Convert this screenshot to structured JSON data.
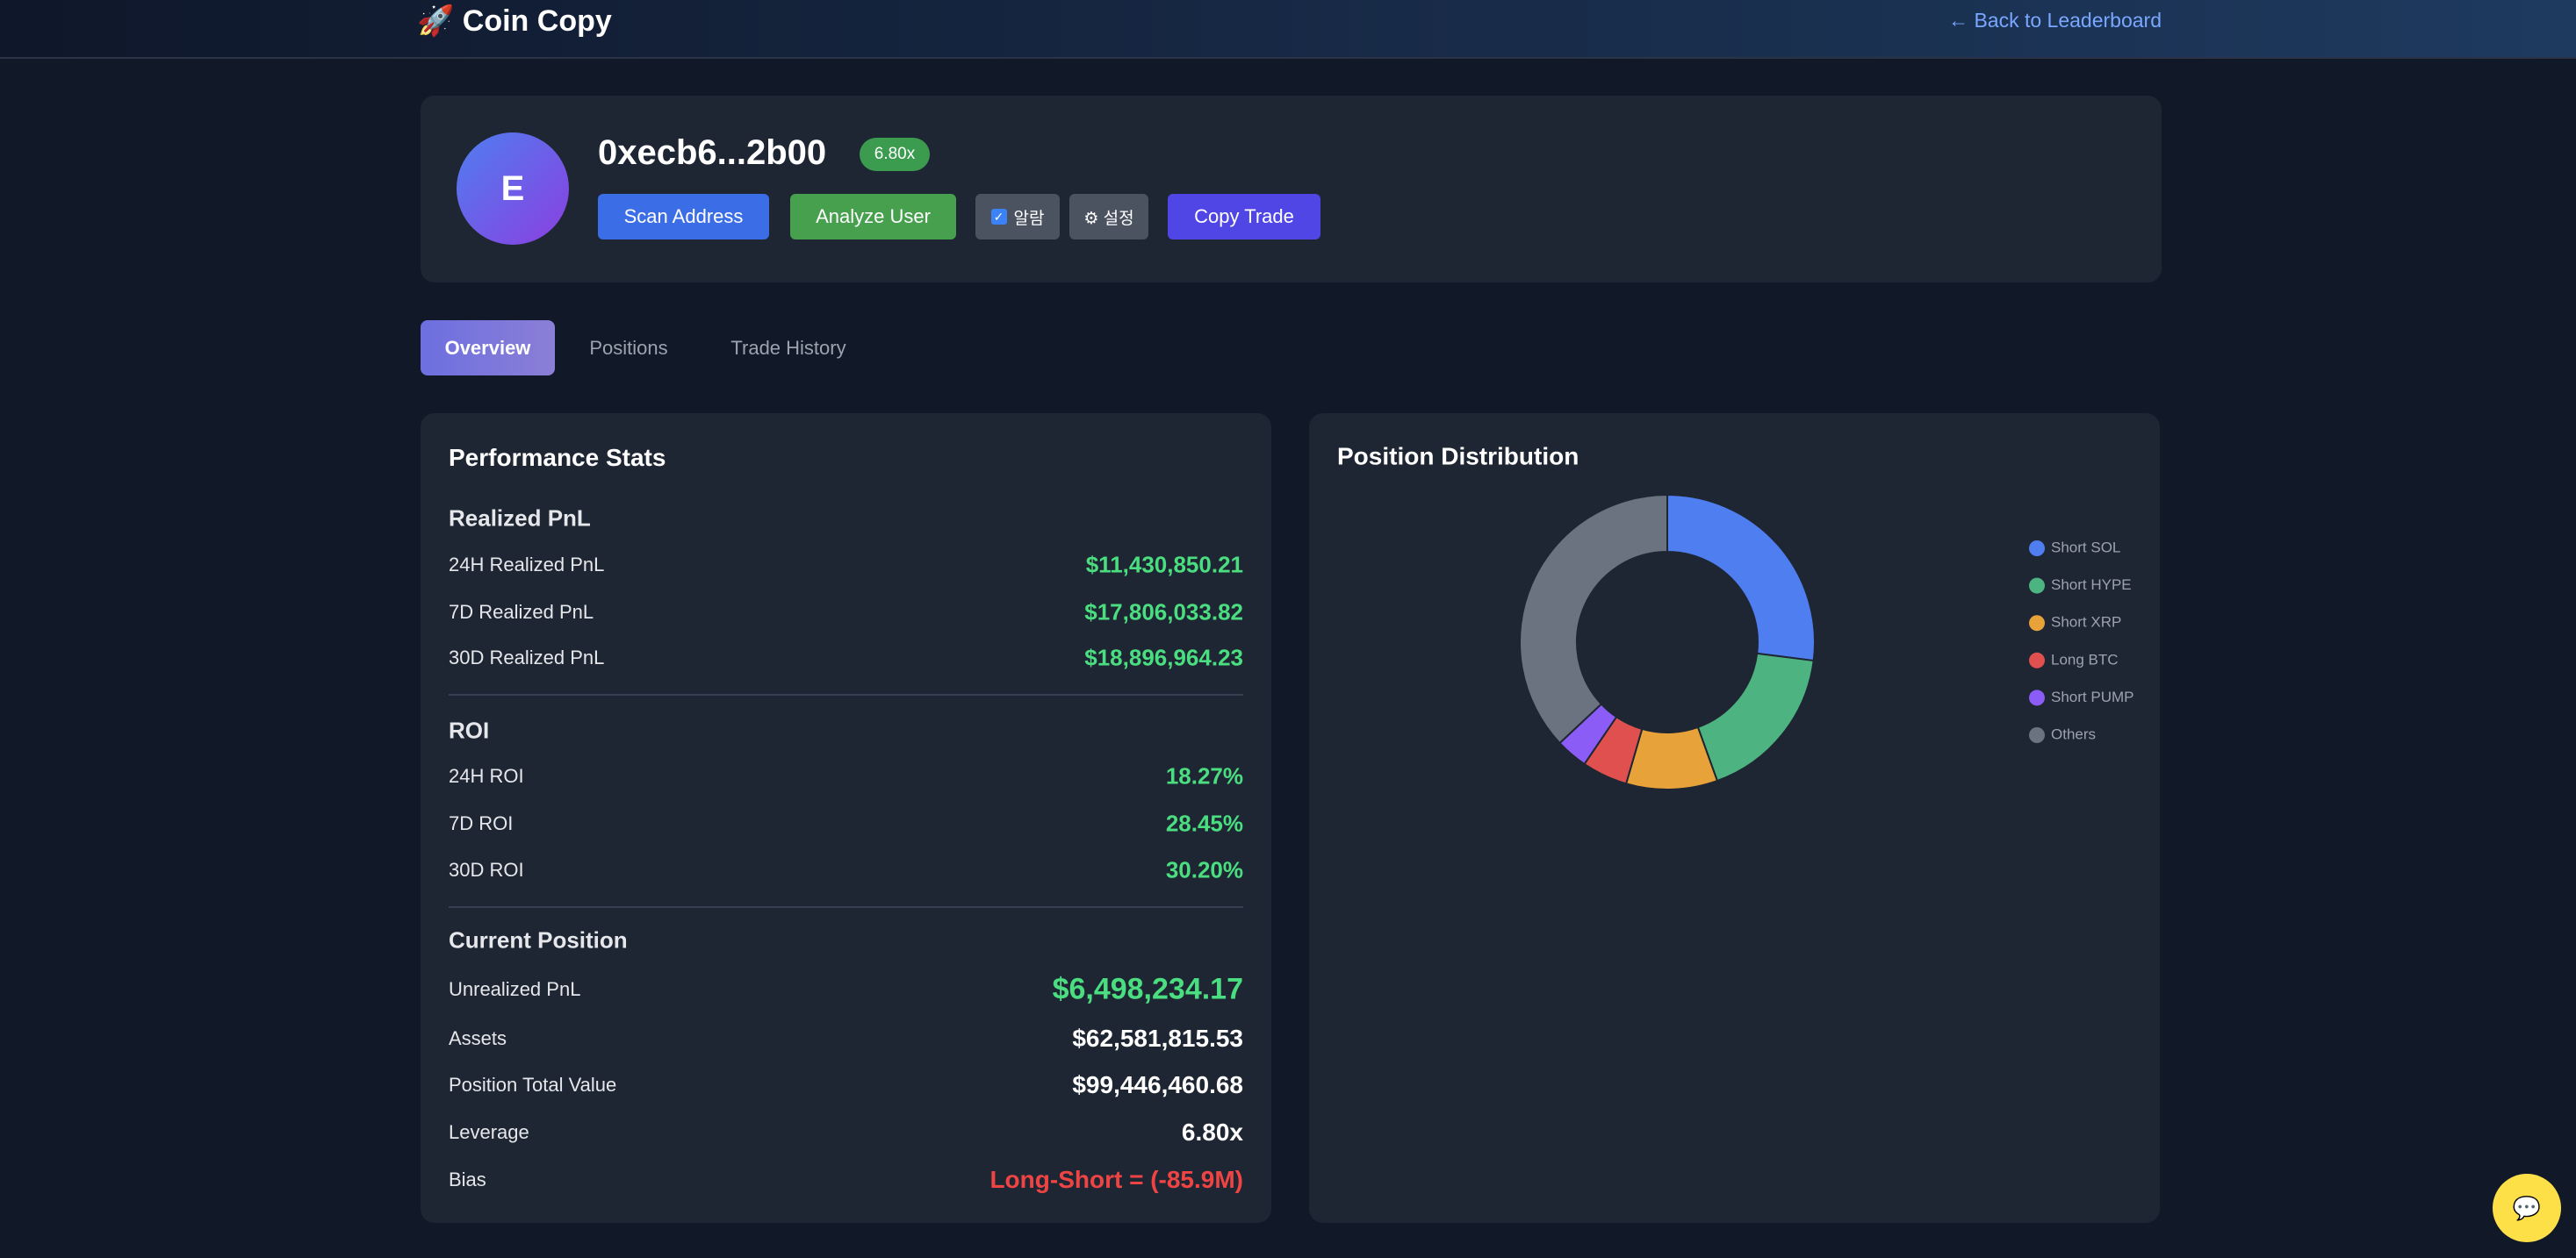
{
  "header": {
    "title": "🚀 Coin Copy",
    "back_link": "← Back to Leaderboard"
  },
  "profile": {
    "avatar": "E",
    "address": "0xecb6...2b00",
    "badge": "6.80x",
    "buttons": [
      "Scan Address",
      "Analyze User",
      "알람",
      "⚙ 설정",
      "Copy Trade"
    ]
  },
  "tabs": [
    "Overview",
    "Positions",
    "Trade History"
  ],
  "stats": {
    "title": "Performance Stats",
    "sections": [
      {
        "title": "Realized PnL",
        "rows": [
          [
            "24H Realized PnL",
            "$11,430,850.21"
          ],
          [
            "7D Realized PnL",
            "$17,806,033.82"
          ],
          [
            "30D Realized PnL",
            "$18,896,964.23"
          ]
        ]
      },
      {
        "title": "ROI",
        "rows": [
          [
            "24H ROI",
            "18.27%"
          ],
          [
            "7D ROI",
            "28.45%"
          ],
          [
            "30D ROI",
            "30.20%"
          ]
        ]
      },
      {
        "title": "Current Position",
        "rows": [
          [
            "Unrealized PnL",
            "$6,498,234.17"
          ],
          [
            "Assets",
            "$62,581,815.53"
          ],
          [
            "Position Total Value",
            "$99,446,460.68"
          ],
          [
            "Leverage",
            "6.80x"
          ],
          [
            "Bias",
            "Long-Short = (-85.9M)"
          ]
        ]
      }
    ]
  },
  "chart_data": {
    "type": "pie",
    "title": "Position Distribution",
    "categories": [
      "Short SOL",
      "Short HYPE",
      "Short XRP",
      "Long BTC",
      "Short PUMP",
      "Others"
    ],
    "values": [
      27,
      17.5,
      10,
      5,
      3.5,
      37
    ],
    "colors": [
      "#4f7ef0",
      "#4db380",
      "#e8a23a",
      "#e0504e",
      "#8b5cf6",
      "#6b7280"
    ],
    "legend": "right"
  }
}
